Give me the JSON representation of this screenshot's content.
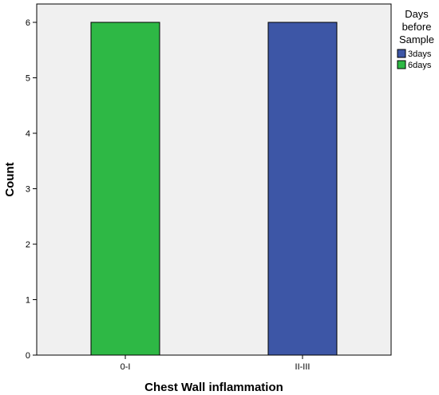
{
  "chart_data": {
    "type": "bar",
    "title": "",
    "xlabel": "Chest Wall inflammation",
    "ylabel": "Count",
    "categories": [
      "0-I",
      "II-III"
    ],
    "series": [
      {
        "name": "3days",
        "color": "#3d56a6",
        "values": [
          0,
          6
        ]
      },
      {
        "name": "6days",
        "color": "#2eb845",
        "values": [
          6,
          0
        ]
      }
    ],
    "ylim": [
      0,
      6
    ],
    "yticks": [
      0,
      1,
      2,
      3,
      4,
      5,
      6
    ],
    "grid": false,
    "legend": {
      "title_lines": [
        "Days",
        "before",
        "Sample"
      ],
      "placement": "right"
    },
    "colors": {
      "plot_background": "#f0f0f0",
      "bar_outline": "#000000"
    }
  }
}
